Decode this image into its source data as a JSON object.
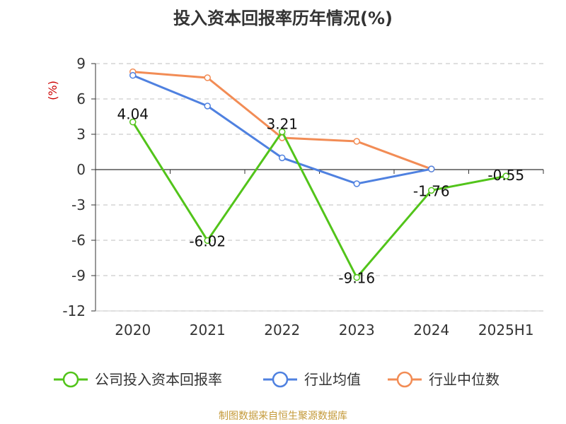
{
  "title": "投入资本回报率历年情况(%)",
  "footer": "制图数据来自恒生聚源数据库",
  "colors": {
    "company": "#52c41a",
    "industry_mean": "#4f81e0",
    "industry_median": "#f28c55",
    "unit": "#cc0000",
    "grid": "#cccccc",
    "axis": "#333333"
  },
  "chart_data": {
    "type": "line",
    "title": "投入资本回报率历年情况(%)",
    "y_unit": "(%)",
    "ylim": [
      -12,
      9
    ],
    "yticks": [
      -12,
      -9,
      -6,
      -3,
      0,
      3,
      6,
      9
    ],
    "grid": true,
    "legend_position": "bottom",
    "categories": [
      "2020",
      "2021",
      "2022",
      "2023",
      "2024",
      "2025H1"
    ],
    "series": [
      {
        "name": "公司投入资本回报率",
        "values": [
          4.04,
          -6.02,
          3.21,
          -9.16,
          -1.76,
          -0.55
        ],
        "labels": [
          "4.04",
          "-6.02",
          "3.21",
          "-9.16",
          "-1.76",
          "-0.55"
        ]
      },
      {
        "name": "行业均值",
        "values": [
          8.0,
          5.4,
          1.0,
          -1.2,
          0.05,
          null
        ]
      },
      {
        "name": "行业中位数",
        "values": [
          8.3,
          7.8,
          2.7,
          2.4,
          0.05,
          null
        ]
      }
    ]
  }
}
